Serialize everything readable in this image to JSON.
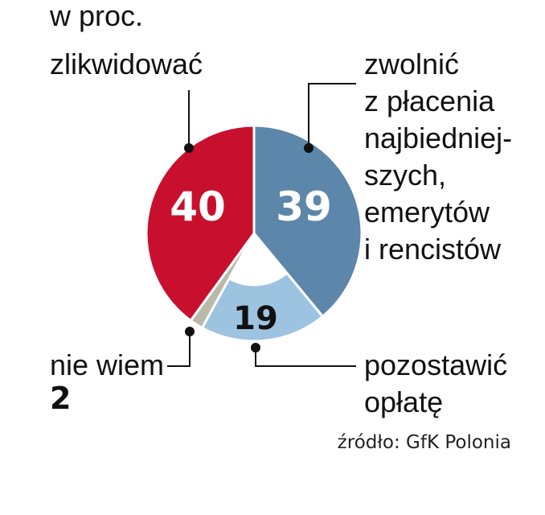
{
  "unit_label": "w proc.",
  "source": "źródło: GfK Polonia",
  "colors": {
    "likwidowac": "#c8102e",
    "zwolnic": "#5d87aa",
    "pozostawic": "#9cc3e0",
    "nie_wiem": "#b9b9aa",
    "text_light": "#ffffff",
    "text_dark": "#111111"
  },
  "chart_data": {
    "type": "pie",
    "unit": "w proc.",
    "slices": [
      {
        "label": "zlikwidować",
        "value": 40,
        "value_label": "40"
      },
      {
        "label_lines": [
          "zwolnić",
          "z płacenia",
          "najbiedniej-",
          "szych,",
          "emerytów",
          "i rencistów"
        ],
        "value": 39,
        "value_label": "39"
      },
      {
        "label_lines": [
          "pozostawić",
          "opłatę"
        ],
        "value": 19,
        "value_label": "19"
      },
      {
        "label": "nie wiem",
        "value": 2,
        "value_label": "2"
      }
    ]
  }
}
